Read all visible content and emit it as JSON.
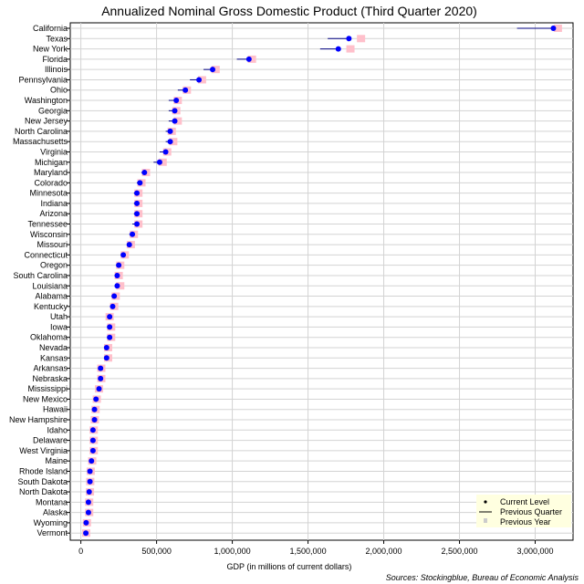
{
  "chart_data": {
    "type": "scatter",
    "title": "Annualized Nominal Gross Domestic Product (Third Quarter 2020)",
    "xlabel": "GDP (in millions of current dollars)",
    "ylabel": "",
    "xlim": [
      -70000,
      3250000
    ],
    "xticks": [
      0,
      500000,
      1000000,
      1500000,
      2000000,
      2500000,
      3000000
    ],
    "xtick_labels": [
      "0",
      "500,000",
      "1,000,000",
      "1,500,000",
      "2,000,000",
      "2,500,000",
      "3,000,000"
    ],
    "grid": true,
    "legend_position": "bottom-right",
    "source": "Sources: Stockingblue, Bureau of Economic Analysis",
    "legend": [
      "Current Level",
      "Previous Quarter",
      "Previous Year"
    ],
    "colors": {
      "current": "#0000ff",
      "previous_quarter": "#000080",
      "previous_year": "#ffc0cb",
      "grid": "#d3d3d3",
      "frame": "#000000"
    },
    "categories": [
      "California",
      "Texas",
      "New York",
      "Florida",
      "Illinois",
      "Pennsylvania",
      "Ohio",
      "Washington",
      "Georgia",
      "New Jersey",
      "North Carolina",
      "Massachusetts",
      "Virginia",
      "Michigan",
      "Maryland",
      "Colorado",
      "Minnesota",
      "Indiana",
      "Arizona",
      "Tennessee",
      "Wisconsin",
      "Missouri",
      "Connecticut",
      "Oregon",
      "South Carolina",
      "Louisiana",
      "Alabama",
      "Kentucky",
      "Utah",
      "Iowa",
      "Oklahoma",
      "Nevada",
      "Kansas",
      "Arkansas",
      "Nebraska",
      "Mississippi",
      "New Mexico",
      "Hawaii",
      "New Hampshire",
      "Idaho",
      "Delaware",
      "West Virginia",
      "Maine",
      "Rhode Island",
      "South Dakota",
      "North Dakota",
      "Montana",
      "Alaska",
      "Wyoming",
      "Vermont"
    ],
    "series": [
      {
        "name": "Current Level",
        "values": [
          3120000,
          1770000,
          1700000,
          1110000,
          870000,
          780000,
          690000,
          630000,
          620000,
          620000,
          590000,
          590000,
          560000,
          520000,
          420000,
          390000,
          370000,
          370000,
          370000,
          370000,
          340000,
          320000,
          280000,
          250000,
          240000,
          240000,
          220000,
          210000,
          190000,
          190000,
          190000,
          170000,
          170000,
          130000,
          130000,
          120000,
          100000,
          90000,
          90000,
          80000,
          80000,
          80000,
          70000,
          60000,
          60000,
          55000,
          50000,
          50000,
          35000,
          33000
        ]
      },
      {
        "name": "Previous Quarter",
        "values": [
          2880000,
          1630000,
          1580000,
          1030000,
          810000,
          720000,
          640000,
          580000,
          580000,
          580000,
          560000,
          560000,
          520000,
          480000,
          400000,
          370000,
          350000,
          350000,
          350000,
          340000,
          320000,
          310000,
          270000,
          240000,
          230000,
          230000,
          210000,
          200000,
          180000,
          180000,
          180000,
          160000,
          160000,
          120000,
          120000,
          110000,
          95000,
          85000,
          85000,
          77000,
          75000,
          75000,
          65000,
          57000,
          57000,
          52000,
          47000,
          47000,
          33000,
          31000
        ]
      },
      {
        "name": "Previous Year",
        "values": [
          3150000,
          1850000,
          1780000,
          1130000,
          890000,
          800000,
          700000,
          640000,
          630000,
          640000,
          600000,
          610000,
          570000,
          540000,
          430000,
          400000,
          380000,
          380000,
          380000,
          380000,
          350000,
          330000,
          290000,
          260000,
          250000,
          260000,
          230000,
          220000,
          190000,
          200000,
          200000,
          180000,
          180000,
          135000,
          135000,
          120000,
          105000,
          97000,
          92000,
          85000,
          85000,
          85000,
          75000,
          65000,
          62000,
          60000,
          55000,
          55000,
          40000,
          35000
        ]
      }
    ]
  }
}
